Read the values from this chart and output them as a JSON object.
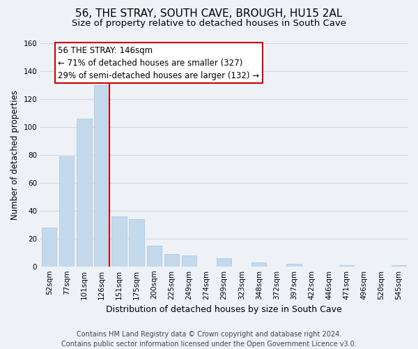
{
  "title": "56, THE STRAY, SOUTH CAVE, BROUGH, HU15 2AL",
  "subtitle": "Size of property relative to detached houses in South Cave",
  "xlabel": "Distribution of detached houses by size in South Cave",
  "ylabel": "Number of detached properties",
  "bar_labels": [
    "52sqm",
    "77sqm",
    "101sqm",
    "126sqm",
    "151sqm",
    "175sqm",
    "200sqm",
    "225sqm",
    "249sqm",
    "274sqm",
    "299sqm",
    "323sqm",
    "348sqm",
    "372sqm",
    "397sqm",
    "422sqm",
    "446sqm",
    "471sqm",
    "496sqm",
    "520sqm",
    "545sqm"
  ],
  "bar_values": [
    28,
    79,
    106,
    130,
    36,
    34,
    15,
    9,
    8,
    0,
    6,
    0,
    3,
    0,
    2,
    0,
    0,
    1,
    0,
    0,
    1
  ],
  "bar_color": "#c5d9ed",
  "bar_edge_color": "#aec8e0",
  "highlight_line_color": "#cc0000",
  "annotation_box_text": "56 THE STRAY: 146sqm\n← 71% of detached houses are smaller (327)\n29% of semi-detached houses are larger (132) →",
  "annotation_box_edge_color": "#cc0000",
  "annotation_box_face_color": "#ffffff",
  "ylim": [
    0,
    160
  ],
  "yticks": [
    0,
    20,
    40,
    60,
    80,
    100,
    120,
    140,
    160
  ],
  "grid_color": "#d0d8e4",
  "background_color": "#eef2f7",
  "footer_text": "Contains HM Land Registry data © Crown copyright and database right 2024.\nContains public sector information licensed under the Open Government Licence v3.0.",
  "title_fontsize": 11,
  "subtitle_fontsize": 9.5,
  "xlabel_fontsize": 9,
  "ylabel_fontsize": 8.5,
  "tick_fontsize": 7.5,
  "footer_fontsize": 7,
  "annotation_fontsize": 8.5
}
